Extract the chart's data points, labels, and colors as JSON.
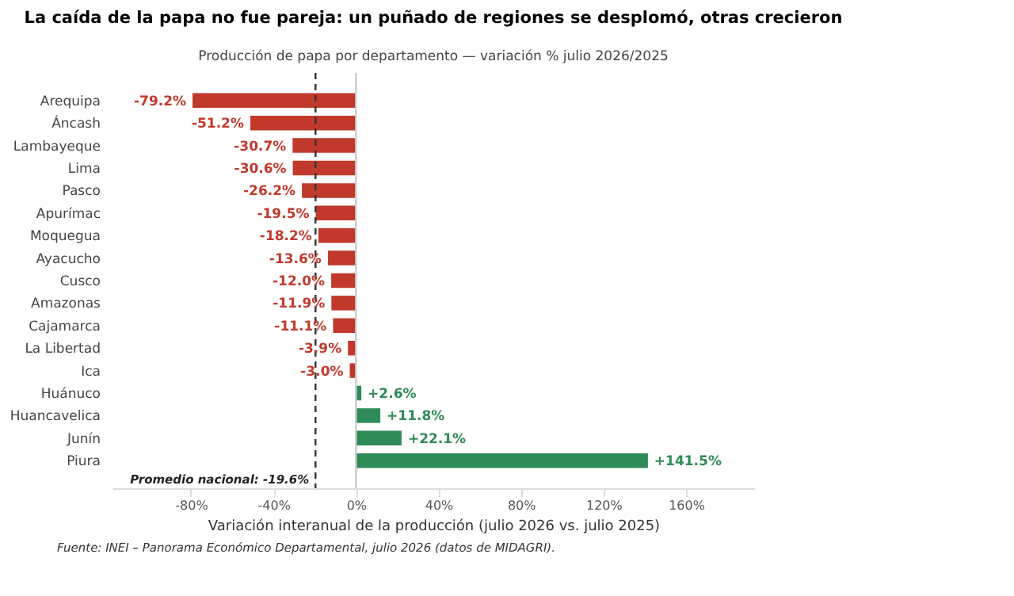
{
  "chart_data": {
    "type": "bar",
    "orientation": "horizontal",
    "title": "La caída de la papa no fue pareja: un puñado de regiones se desplomó, otras crecieron",
    "subtitle": "Producción de papa por departamento — variación % julio 2026/2025",
    "xlabel": "Variación interanual de la producción (julio 2026 vs. julio 2025)",
    "categories": [
      "Arequipa",
      "Áncash",
      "Lambayeque",
      "Lima",
      "Pasco",
      "Apurímac",
      "Moquegua",
      "Ayacucho",
      "Cusco",
      "Amazonas",
      "Cajamarca",
      "La Libertad",
      "Ica",
      "Huánuco",
      "Huancavelica",
      "Junín",
      "Piura"
    ],
    "values": [
      -79.2,
      -51.2,
      -30.7,
      -30.6,
      -26.2,
      -19.5,
      -18.2,
      -13.6,
      -12.0,
      -11.9,
      -11.1,
      -3.9,
      -3.0,
      2.6,
      11.8,
      22.1,
      141.5
    ],
    "colors": [
      "#c0392b",
      "#c0392b",
      "#c0392b",
      "#c0392b",
      "#c0392b",
      "#c0392b",
      "#c0392b",
      "#c0392b",
      "#c0392b",
      "#c0392b",
      "#c0392b",
      "#c0392b",
      "#c0392b",
      "#2e8b57",
      "#2e8b57",
      "#2e8b57",
      "#2e8b57"
    ],
    "value_labels": [
      "-79.2%",
      "-51.2%",
      "-30.7%",
      "-30.6%",
      "-26.2%",
      "-19.5%",
      "-18.2%",
      "-13.6%",
      "-12.0%",
      "-11.9%",
      "-11.1%",
      "-3.9%",
      "-3.0%",
      "+2.6%",
      "+11.8%",
      "+22.1%",
      "+141.5%"
    ],
    "xlim": [
      -118,
      193
    ],
    "xticks": [
      {
        "value": -80,
        "label": "-80%"
      },
      {
        "value": -40,
        "label": "-40%"
      },
      {
        "value": 0,
        "label": "0%"
      },
      {
        "value": 40,
        "label": "40%"
      },
      {
        "value": 80,
        "label": "80%"
      },
      {
        "value": 120,
        "label": "120%"
      },
      {
        "value": 160,
        "label": "160%"
      }
    ],
    "ref_lines": [
      {
        "axis": "x",
        "value": 0,
        "color": "#cccccc",
        "line_style": "solid"
      },
      {
        "axis": "x",
        "value": -19.6,
        "label": "Promedio nacional: -19.6%",
        "color": "#333333",
        "line_style": "dashed"
      }
    ],
    "annotations": [
      "Fuente: INEI – Panorama Económico Departamental, julio 2026 (datos de MIDAGRI)."
    ],
    "grid": false
  }
}
